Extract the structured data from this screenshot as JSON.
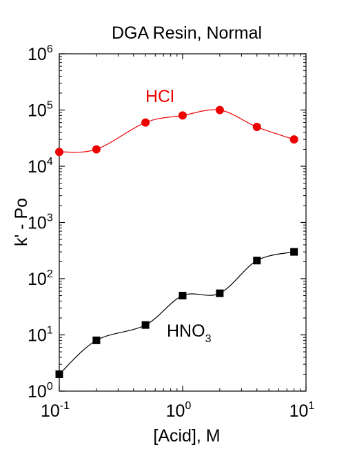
{
  "chart_data": {
    "type": "scatter",
    "title": "DGA Resin, Normal",
    "xlabel": "[Acid], M",
    "ylabel": "k' - Po",
    "x_scale": "log",
    "y_scale": "log",
    "xlim": [
      0.1,
      10
    ],
    "ylim": [
      1,
      1000000
    ],
    "x_ticks": [
      {
        "base": "10",
        "exp": "-1",
        "value": 0.1
      },
      {
        "base": "10",
        "exp": "0",
        "value": 1
      },
      {
        "base": "10",
        "exp": "1",
        "value": 10
      }
    ],
    "y_ticks": [
      {
        "base": "10",
        "exp": "0",
        "value": 1
      },
      {
        "base": "10",
        "exp": "1",
        "value": 10
      },
      {
        "base": "10",
        "exp": "2",
        "value": 100
      },
      {
        "base": "10",
        "exp": "3",
        "value": 1000
      },
      {
        "base": "10",
        "exp": "4",
        "value": 10000
      },
      {
        "base": "10",
        "exp": "5",
        "value": 100000
      },
      {
        "base": "10",
        "exp": "6",
        "value": 1000000
      }
    ],
    "grid": false,
    "series": [
      {
        "name": "HCl",
        "label_main": "HCl",
        "label_sub": "",
        "marker": "circle",
        "color": "#ee0000",
        "x": [
          0.1,
          0.2,
          0.5,
          1,
          2,
          4,
          8
        ],
        "y": [
          18000,
          20000,
          60000,
          80000,
          100000,
          50000,
          30000
        ]
      },
      {
        "name": "HNO3",
        "label_main": "HNO",
        "label_sub": "3",
        "marker": "square",
        "color": "#000000",
        "x": [
          0.1,
          0.2,
          0.5,
          1,
          2,
          4,
          8
        ],
        "y": [
          2,
          8,
          15,
          50,
          55,
          210,
          300
        ]
      }
    ]
  }
}
